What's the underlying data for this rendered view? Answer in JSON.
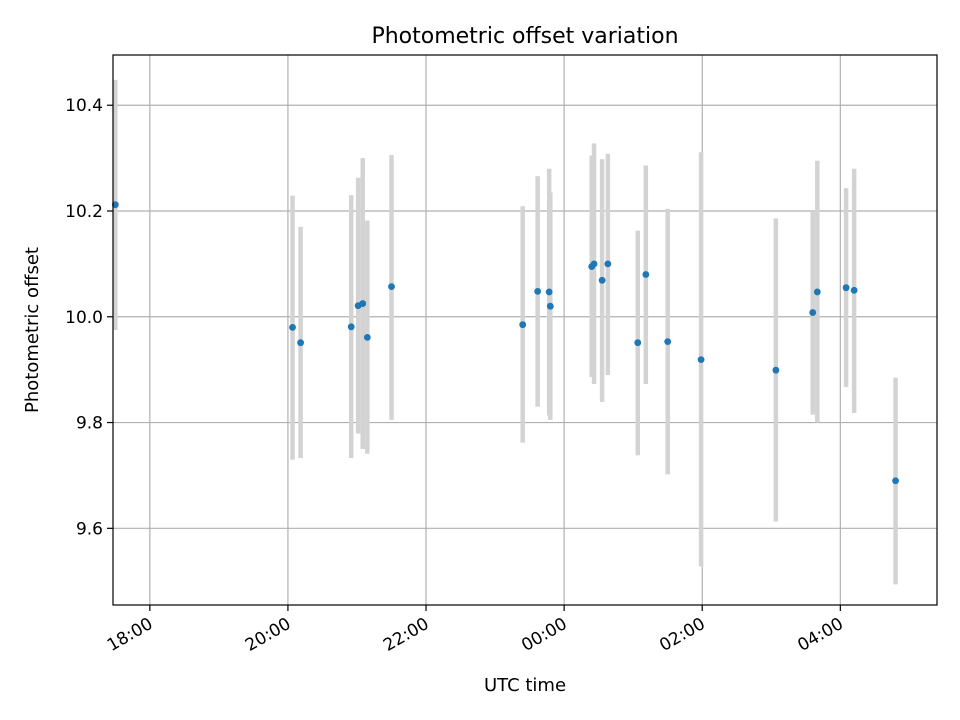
{
  "chart_data": {
    "type": "scatter",
    "title": "Photometric offset variation",
    "xlabel": "UTC time",
    "ylabel": "Photometric offset",
    "grid": true,
    "xlim": [
      "17:28",
      "05:24"
    ],
    "ylim": [
      9.455,
      10.495
    ],
    "x_ticks": [
      "18:00",
      "20:00",
      "22:00",
      "00:00",
      "02:00",
      "04:00"
    ],
    "y_ticks": [
      "9.6",
      "9.8",
      "10.0",
      "10.2",
      "10.4"
    ],
    "point_color": "#1f77b4",
    "errorbar_color": "#d3d3d3",
    "points": [
      {
        "time": "17:30",
        "y": 10.212,
        "y_low": 9.975,
        "y_high": 10.448
      },
      {
        "time": "20:04",
        "y": 9.98,
        "y_low": 9.73,
        "y_high": 10.229
      },
      {
        "time": "20:11",
        "y": 9.951,
        "y_low": 9.733,
        "y_high": 10.17
      },
      {
        "time": "20:55",
        "y": 9.981,
        "y_low": 9.733,
        "y_high": 10.23
      },
      {
        "time": "21:01",
        "y": 10.021,
        "y_low": 9.779,
        "y_high": 10.263
      },
      {
        "time": "21:05",
        "y": 10.025,
        "y_low": 9.75,
        "y_high": 10.3
      },
      {
        "time": "21:09",
        "y": 9.961,
        "y_low": 9.741,
        "y_high": 10.182
      },
      {
        "time": "21:30",
        "y": 10.057,
        "y_low": 9.805,
        "y_high": 10.306
      },
      {
        "time": "23:24",
        "y": 9.985,
        "y_low": 9.762,
        "y_high": 10.209
      },
      {
        "time": "23:37",
        "y": 10.048,
        "y_low": 9.83,
        "y_high": 10.266
      },
      {
        "time": "23:47",
        "y": 10.047,
        "y_low": 9.813,
        "y_high": 10.28
      },
      {
        "time": "23:48",
        "y": 10.02,
        "y_low": 9.805,
        "y_high": 10.235
      },
      {
        "time": "00:24",
        "y": 10.095,
        "y_low": 9.886,
        "y_high": 10.305
      },
      {
        "time": "00:26",
        "y": 10.1,
        "y_low": 9.873,
        "y_high": 10.328
      },
      {
        "time": "00:33",
        "y": 10.069,
        "y_low": 9.839,
        "y_high": 10.298
      },
      {
        "time": "00:38",
        "y": 10.1,
        "y_low": 9.89,
        "y_high": 10.308
      },
      {
        "time": "01:04",
        "y": 9.951,
        "y_low": 9.738,
        "y_high": 10.163
      },
      {
        "time": "01:11",
        "y": 10.08,
        "y_low": 9.873,
        "y_high": 10.286
      },
      {
        "time": "01:30",
        "y": 9.953,
        "y_low": 9.702,
        "y_high": 10.204
      },
      {
        "time": "01:59",
        "y": 9.919,
        "y_low": 9.528,
        "y_high": 10.311
      },
      {
        "time": "03:04",
        "y": 9.899,
        "y_low": 9.613,
        "y_high": 10.186
      },
      {
        "time": "03:36",
        "y": 10.008,
        "y_low": 9.815,
        "y_high": 10.2
      },
      {
        "time": "03:40",
        "y": 10.047,
        "y_low": 9.8,
        "y_high": 10.295
      },
      {
        "time": "04:05",
        "y": 10.055,
        "y_low": 9.867,
        "y_high": 10.243
      },
      {
        "time": "04:12",
        "y": 10.05,
        "y_low": 9.818,
        "y_high": 10.28
      },
      {
        "time": "04:48",
        "y": 9.69,
        "y_low": 9.494,
        "y_high": 9.885
      }
    ]
  }
}
